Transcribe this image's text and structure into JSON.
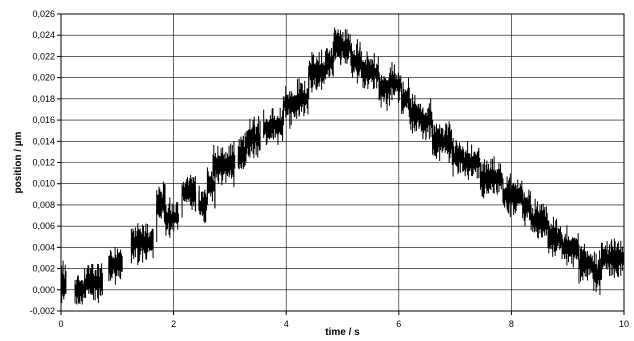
{
  "chart_data": {
    "type": "line",
    "title": "",
    "xlabel": "time  / s",
    "ylabel": "position  / µm",
    "xlim": [
      0,
      10
    ],
    "ylim": [
      -0.002,
      0.026
    ],
    "x_ticks": [
      "0",
      "2",
      "4",
      "6",
      "8",
      "10"
    ],
    "y_ticks": [
      "-0,002",
      "0,000",
      "0,002",
      "0,004",
      "0,006",
      "0,008",
      "0,010",
      "0,012",
      "0,014",
      "0,016",
      "0,018",
      "0,020",
      "0,022",
      "0,024",
      "0,026"
    ],
    "x_tick_values": [
      0,
      2,
      4,
      6,
      8,
      10
    ],
    "y_tick_values": [
      -0.002,
      0,
      0.002,
      0.004,
      0.006,
      0.008,
      0.01,
      0.012,
      0.014,
      0.016,
      0.018,
      0.02,
      0.022,
      0.024,
      0.026
    ],
    "grid": true,
    "series": [
      {
        "color": "#000000",
        "steps": [
          {
            "x0": 0.0,
            "x1": 0.1,
            "y": 0.0005
          },
          {
            "x0": 0.25,
            "x1": 0.45,
            "y": 0.0
          },
          {
            "x0": 0.45,
            "x1": 0.75,
            "y": 0.0008
          },
          {
            "x0": 0.85,
            "x1": 1.1,
            "y": 0.0025
          },
          {
            "x0": 1.25,
            "x1": 1.65,
            "y": 0.0045
          },
          {
            "x0": 1.7,
            "x1": 1.85,
            "y": 0.008
          },
          {
            "x0": 1.85,
            "x1": 2.1,
            "y": 0.0068
          },
          {
            "x0": 2.15,
            "x1": 2.4,
            "y": 0.0093
          },
          {
            "x0": 2.45,
            "x1": 2.6,
            "y": 0.008
          },
          {
            "x0": 2.6,
            "x1": 2.75,
            "y": 0.0098
          },
          {
            "x0": 2.7,
            "x1": 3.1,
            "y": 0.0118
          },
          {
            "x0": 3.15,
            "x1": 3.3,
            "y": 0.0128
          },
          {
            "x0": 3.3,
            "x1": 3.55,
            "y": 0.0143
          },
          {
            "x0": 3.6,
            "x1": 3.75,
            "y": 0.0152
          },
          {
            "x0": 3.75,
            "x1": 3.95,
            "y": 0.0155
          },
          {
            "x0": 3.95,
            "x1": 4.2,
            "y": 0.0175
          },
          {
            "x0": 4.2,
            "x1": 4.4,
            "y": 0.018
          },
          {
            "x0": 4.4,
            "x1": 4.7,
            "y": 0.0205
          },
          {
            "x0": 4.7,
            "x1": 4.85,
            "y": 0.0215
          },
          {
            "x0": 4.85,
            "x1": 5.15,
            "y": 0.023
          },
          {
            "x0": 5.15,
            "x1": 5.35,
            "y": 0.0215
          },
          {
            "x0": 5.35,
            "x1": 5.65,
            "y": 0.0205
          },
          {
            "x0": 5.65,
            "x1": 5.85,
            "y": 0.019
          },
          {
            "x0": 5.85,
            "x1": 6.05,
            "y": 0.0195
          },
          {
            "x0": 6.05,
            "x1": 6.2,
            "y": 0.018
          },
          {
            "x0": 6.2,
            "x1": 6.4,
            "y": 0.0165
          },
          {
            "x0": 6.4,
            "x1": 6.6,
            "y": 0.016
          },
          {
            "x0": 6.6,
            "x1": 6.95,
            "y": 0.014
          },
          {
            "x0": 6.95,
            "x1": 7.15,
            "y": 0.0125
          },
          {
            "x0": 7.15,
            "x1": 7.45,
            "y": 0.012
          },
          {
            "x0": 7.45,
            "x1": 7.85,
            "y": 0.0105
          },
          {
            "x0": 7.85,
            "x1": 8.2,
            "y": 0.009
          },
          {
            "x0": 8.2,
            "x1": 8.35,
            "y": 0.008
          },
          {
            "x0": 8.35,
            "x1": 8.65,
            "y": 0.0065
          },
          {
            "x0": 8.65,
            "x1": 8.9,
            "y": 0.005
          },
          {
            "x0": 8.9,
            "x1": 9.2,
            "y": 0.004
          },
          {
            "x0": 9.2,
            "x1": 9.45,
            "y": 0.0025
          },
          {
            "x0": 9.45,
            "x1": 9.6,
            "y": 0.0015
          },
          {
            "x0": 9.6,
            "x1": 10.0,
            "y": 0.003
          }
        ]
      }
    ]
  }
}
